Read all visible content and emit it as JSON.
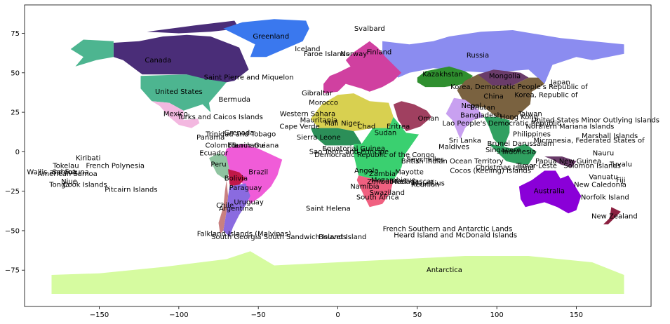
{
  "chart_data": {
    "type": "map",
    "xlim": [
      -197,
      197
    ],
    "ylim": [
      -98,
      93
    ],
    "x_ticks": [
      -150,
      -100,
      -50,
      0,
      50,
      100,
      150
    ],
    "y_ticks": [
      75,
      50,
      25,
      0,
      -25,
      -50,
      -75
    ],
    "x_tick_labels": [
      "−150",
      "−100",
      "−50",
      "0",
      "50",
      "100",
      "150"
    ],
    "y_tick_labels": [
      "75",
      "50",
      "25",
      "0",
      "−25",
      "−50",
      "−75"
    ],
    "grid": false,
    "country_labels": [
      {
        "name": "Svalbard",
        "lon": 20,
        "lat": 78
      },
      {
        "name": "Greenland",
        "lon": -42,
        "lat": 73
      },
      {
        "name": "Russia",
        "lon": 88,
        "lat": 61
      },
      {
        "name": "Canada",
        "lon": -113,
        "lat": 58
      },
      {
        "name": "Iceland",
        "lon": -19,
        "lat": 65
      },
      {
        "name": "Faroe Islands",
        "lon": -7,
        "lat": 62
      },
      {
        "name": "Norway",
        "lon": 10,
        "lat": 62
      },
      {
        "name": "Finland",
        "lon": 26,
        "lat": 63
      },
      {
        "name": "Kazakhstan",
        "lon": 66,
        "lat": 49
      },
      {
        "name": "Mongolia",
        "lon": 105,
        "lat": 48
      },
      {
        "name": "Japan",
        "lon": 140,
        "lat": 44
      },
      {
        "name": "Saint Pierre and Miquelon",
        "lon": -56,
        "lat": 47
      },
      {
        "name": "United States",
        "lon": -100,
        "lat": 38
      },
      {
        "name": "Korea, Democratic People's Republic of",
        "lon": 114,
        "lat": 41
      },
      {
        "name": "China",
        "lon": 98,
        "lat": 35
      },
      {
        "name": "Korea, Republic of",
        "lon": 131,
        "lat": 36
      },
      {
        "name": "Bermuda",
        "lon": -65,
        "lat": 33
      },
      {
        "name": "Gibraltar",
        "lon": -13,
        "lat": 37
      },
      {
        "name": "Morocco",
        "lon": -9,
        "lat": 31
      },
      {
        "name": "Western Sahara",
        "lon": -19,
        "lat": 24
      },
      {
        "name": "Mauritania",
        "lon": -12,
        "lat": 20
      },
      {
        "name": "Mexico",
        "lon": -102,
        "lat": 24
      },
      {
        "name": "Turks and Caicos Islands",
        "lon": -74,
        "lat": 22
      },
      {
        "name": "Mali",
        "lon": -4,
        "lat": 18
      },
      {
        "name": "Niger",
        "lon": 8,
        "lat": 18
      },
      {
        "name": "Chad",
        "lon": 18,
        "lat": 16
      },
      {
        "name": "Eritrea",
        "lon": 38,
        "lat": 16
      },
      {
        "name": "Sudan",
        "lon": 30,
        "lat": 12
      },
      {
        "name": "Oman",
        "lon": 57,
        "lat": 21
      },
      {
        "name": "Nepal",
        "lon": 84,
        "lat": 29
      },
      {
        "name": "Bhutan",
        "lon": 91,
        "lat": 28
      },
      {
        "name": "Taiwan",
        "lon": 121,
        "lat": 24
      },
      {
        "name": "Bangladesh",
        "lon": 90,
        "lat": 23
      },
      {
        "name": "Hong Kong",
        "lon": 114,
        "lat": 22
      },
      {
        "name": "Lao People's Democratic Republic",
        "lon": 103,
        "lat": 18
      },
      {
        "name": "Northern Mariana Islands",
        "lon": 146,
        "lat": 16
      },
      {
        "name": "United States Minor Outlying Islands",
        "lon": 162,
        "lat": 20
      },
      {
        "name": "Marshall Islands",
        "lon": 171,
        "lat": 10
      },
      {
        "name": "Micronesia, Federated States of",
        "lon": 158,
        "lat": 7
      },
      {
        "name": "Cape Verde",
        "lon": -24,
        "lat": 16
      },
      {
        "name": "Grenada",
        "lon": -62,
        "lat": 12
      },
      {
        "name": "Trinidad and Tobago",
        "lon": -61,
        "lat": 11
      },
      {
        "name": "Panama",
        "lon": -80,
        "lat": 9
      },
      {
        "name": "Colombia",
        "lon": -73,
        "lat": 4
      },
      {
        "name": "Suriname",
        "lon": -56,
        "lat": 4
      },
      {
        "name": "French Guiana",
        "lon": -53,
        "lat": 4
      },
      {
        "name": "Sierra Leone",
        "lon": -12,
        "lat": 9
      },
      {
        "name": "Maldives",
        "lon": 73,
        "lat": 3
      },
      {
        "name": "Sri Lanka",
        "lon": 80,
        "lat": 7
      },
      {
        "name": "Singapore",
        "lon": 104,
        "lat": 1
      },
      {
        "name": "Brunei Darussalam",
        "lon": 115,
        "lat": 5
      },
      {
        "name": "Philippines",
        "lon": 122,
        "lat": 11
      },
      {
        "name": "Indonesia",
        "lon": 114,
        "lat": 0
      },
      {
        "name": "Ecuador",
        "lon": -78,
        "lat": -1
      },
      {
        "name": "Sao Tome and Principe",
        "lon": 7,
        "lat": 0
      },
      {
        "name": "Equatorial Guinea",
        "lon": 10,
        "lat": 2
      },
      {
        "name": "Democratic Republic of the Congo",
        "lon": 23,
        "lat": -2
      },
      {
        "name": "Nauru",
        "lon": 167,
        "lat": -1
      },
      {
        "name": "Kiribati",
        "lon": -157,
        "lat": -4
      },
      {
        "name": "Tokelau",
        "lon": -171,
        "lat": -9
      },
      {
        "name": "French Polynesia",
        "lon": -140,
        "lat": -9
      },
      {
        "name": "Peru",
        "lon": -75,
        "lat": -8
      },
      {
        "name": "Brazil",
        "lon": -50,
        "lat": -13
      },
      {
        "name": "Seychelles",
        "lon": 55,
        "lat": -5
      },
      {
        "name": "British Indian Ocean Territory",
        "lon": 72,
        "lat": -6
      },
      {
        "name": "Cocos (Keeling) Islands",
        "lon": 96,
        "lat": -12
      },
      {
        "name": "Christmas Island",
        "lon": 105,
        "lat": -10
      },
      {
        "name": "Timor-Leste",
        "lon": 125,
        "lat": -9
      },
      {
        "name": "Papua New Guinea",
        "lon": 145,
        "lat": -6
      },
      {
        "name": "Solomon Islands",
        "lon": 160,
        "lat": -9
      },
      {
        "name": "Tuvalu",
        "lon": 178,
        "lat": -8
      },
      {
        "name": "Wallis and Futuna",
        "lon": -176,
        "lat": -13
      },
      {
        "name": "American Samoa",
        "lon": -170,
        "lat": -14
      },
      {
        "name": "Samoa",
        "lon": -172,
        "lat": -13
      },
      {
        "name": "Niue",
        "lon": -169,
        "lat": -19
      },
      {
        "name": "Tonga",
        "lon": -175,
        "lat": -21
      },
      {
        "name": "Cook Islands",
        "lon": -159,
        "lat": -21
      },
      {
        "name": "Pitcairn Islands",
        "lon": -130,
        "lat": -24
      },
      {
        "name": "Bolivia",
        "lon": -64,
        "lat": -17
      },
      {
        "name": "Paraguay",
        "lon": -58,
        "lat": -23
      },
      {
        "name": "Angola",
        "lon": 18,
        "lat": -12
      },
      {
        "name": "Zambia",
        "lon": 28,
        "lat": -14
      },
      {
        "name": "Mayotte",
        "lon": 45,
        "lat": -13
      },
      {
        "name": "Zimbabwe",
        "lon": 30,
        "lat": -19
      },
      {
        "name": "Mozambique",
        "lon": 35,
        "lat": -18
      },
      {
        "name": "Madagascar",
        "lon": 47,
        "lat": -19
      },
      {
        "name": "Mauritius",
        "lon": 57,
        "lat": -20
      },
      {
        "name": "Reunion",
        "lon": 55,
        "lat": -21
      },
      {
        "name": "Namibia",
        "lon": 17,
        "lat": -22
      },
      {
        "name": "Swaziland",
        "lon": 31,
        "lat": -26
      },
      {
        "name": "South Africa",
        "lon": 25,
        "lat": -29
      },
      {
        "name": "Australia",
        "lon": 133,
        "lat": -25
      },
      {
        "name": "Vanuatu",
        "lon": 167,
        "lat": -16
      },
      {
        "name": "Fiji",
        "lon": 178,
        "lat": -18
      },
      {
        "name": "New Caledonia",
        "lon": 165,
        "lat": -21
      },
      {
        "name": "Norfolk Island",
        "lon": 168,
        "lat": -29
      },
      {
        "name": "Uruguay",
        "lon": -56,
        "lat": -32
      },
      {
        "name": "Chile",
        "lon": -71,
        "lat": -34
      },
      {
        "name": "Argentina",
        "lon": -64,
        "lat": -36
      },
      {
        "name": "Saint Helena",
        "lon": -6,
        "lat": -36
      },
      {
        "name": "New Zealand",
        "lon": 174,
        "lat": -41
      },
      {
        "name": "Falkland Islands (Malvinas)",
        "lon": -59,
        "lat": -52
      },
      {
        "name": "South Georgia South Sandwich Islands",
        "lon": -37,
        "lat": -54
      },
      {
        "name": "Bouvet Island",
        "lon": 3,
        "lat": -54
      },
      {
        "name": "French Southern and Antarctic Lands",
        "lon": 69,
        "lat": -49
      },
      {
        "name": "Heard Island and McDonald Islands",
        "lon": 74,
        "lat": -53
      },
      {
        "name": "Antarctica",
        "lon": 67,
        "lat": -75
      }
    ],
    "regions": [
      {
        "name": "Antarctica",
        "color": "#d6fba0"
      },
      {
        "name": "Canada",
        "color": "#4a2d78"
      },
      {
        "name": "United States",
        "color": "#4db590"
      },
      {
        "name": "Greenland",
        "color": "#3a78ee"
      },
      {
        "name": "Russia",
        "color": "#8b8cf0"
      },
      {
        "name": "China",
        "color": "#7a6240"
      },
      {
        "name": "Mongolia",
        "color": "#6a3c6a"
      },
      {
        "name": "Kazakhstan",
        "color": "#2f8f2f"
      },
      {
        "name": "Mexico",
        "color": "#f3b8e0"
      },
      {
        "name": "Brazil",
        "color": "#f05cd8"
      },
      {
        "name": "Peru",
        "color": "#8fc4a0"
      },
      {
        "name": "Bolivia",
        "color": "#c01848"
      },
      {
        "name": "Argentina",
        "color": "#8a6be0"
      },
      {
        "name": "Chile",
        "color": "#c88080"
      },
      {
        "name": "Australia",
        "color": "#8a00d8"
      },
      {
        "name": "New Zealand",
        "color": "#8b2040"
      },
      {
        "name": "Africa-north",
        "color": "#d8d050"
      },
      {
        "name": "Africa-west",
        "color": "#2b8f58"
      },
      {
        "name": "Africa-central",
        "color": "#3ad070"
      },
      {
        "name": "Africa-south",
        "color": "#f06080"
      },
      {
        "name": "Europe",
        "color": "#d040a0"
      },
      {
        "name": "Arabia",
        "color": "#a04060"
      },
      {
        "name": "India",
        "color": "#c8a0f0"
      },
      {
        "name": "SE Asia",
        "color": "#30a060"
      }
    ]
  }
}
